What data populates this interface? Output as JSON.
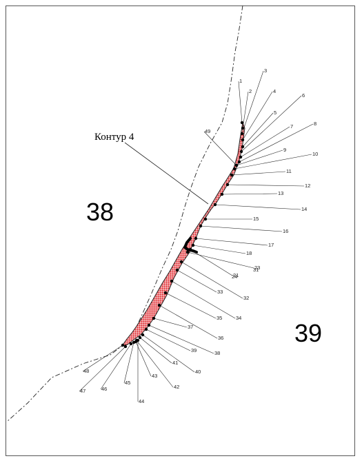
{
  "regions": {
    "left": "38",
    "right": "39"
  },
  "callout": "Контур 4",
  "point_labels": [
    "1",
    "2",
    "3",
    "4",
    "5",
    "6",
    "7",
    "8",
    "9",
    "10",
    "11",
    "12",
    "13",
    "14",
    "15",
    "16",
    "17",
    "18",
    "21",
    "23",
    "24",
    "31",
    "32",
    "33",
    "34",
    "35",
    "36",
    "37",
    "38",
    "39",
    "40",
    "41",
    "42",
    "43",
    "44",
    "45",
    "46",
    "47",
    "48",
    "49"
  ],
  "colors": {
    "fill": "#e0262e",
    "line": "#222222",
    "frame": "#555555"
  }
}
